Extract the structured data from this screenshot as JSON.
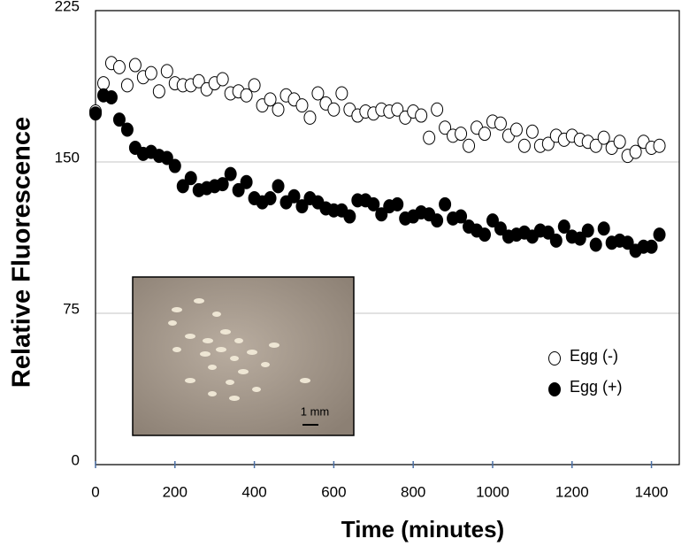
{
  "chart_data": {
    "type": "scatter",
    "y_label": "Relative Fluorescence",
    "x_label": "Time (minutes)",
    "inset_scale_label": "1 mm",
    "xlim": [
      0,
      1470
    ],
    "ylim": [
      0,
      225
    ],
    "xticks": [
      0,
      200,
      400,
      600,
      800,
      1000,
      1200,
      1400
    ],
    "yticks": [
      0,
      75,
      150,
      225
    ],
    "grid": true,
    "legend": "right",
    "x": [
      0,
      20,
      40,
      60,
      80,
      100,
      120,
      140,
      160,
      180,
      200,
      220,
      240,
      260,
      280,
      300,
      320,
      340,
      360,
      380,
      400,
      420,
      440,
      460,
      480,
      500,
      520,
      540,
      560,
      580,
      600,
      620,
      640,
      660,
      680,
      700,
      720,
      740,
      760,
      780,
      800,
      820,
      840,
      860,
      880,
      900,
      920,
      940,
      960,
      980,
      1000,
      1020,
      1040,
      1060,
      1080,
      1100,
      1120,
      1140,
      1160,
      1180,
      1200,
      1220,
      1240,
      1260,
      1280,
      1300,
      1320,
      1340,
      1360,
      1380,
      1400,
      1420
    ],
    "series": [
      {
        "name": "Egg (-)",
        "color": "#ffffff",
        "stroke": "#000000",
        "values": [
          175,
          189,
          199,
          197,
          188,
          198,
          192,
          194,
          185,
          195,
          189,
          188,
          188,
          190,
          186,
          189,
          191,
          184,
          185,
          183,
          188,
          178,
          181,
          176,
          183,
          181,
          178,
          172,
          184,
          179,
          176,
          184,
          176,
          173,
          175,
          174,
          176,
          175,
          176,
          172,
          175,
          173,
          162,
          176,
          167,
          163,
          164,
          158,
          167,
          164,
          170,
          169,
          163,
          166,
          158,
          165,
          158,
          159,
          163,
          161,
          163,
          161,
          160,
          158,
          162,
          157,
          160,
          153,
          155,
          160,
          157,
          158
        ]
      },
      {
        "name": "Egg (+)",
        "color": "#000000",
        "stroke": "#000000",
        "values": [
          174,
          183,
          182,
          171,
          166,
          157,
          154,
          155,
          153,
          152,
          148,
          138,
          142,
          136,
          137,
          138,
          139,
          144,
          136,
          140,
          132,
          130,
          132,
          138,
          130,
          133,
          128,
          132,
          130,
          127,
          126,
          126,
          123,
          131,
          131,
          129,
          124,
          128,
          129,
          122,
          123,
          125,
          124,
          121,
          129,
          122,
          123,
          118,
          116,
          114,
          121,
          117,
          113,
          114,
          115,
          113,
          116,
          115,
          111,
          118,
          113,
          112,
          116,
          109,
          117,
          110,
          111,
          110,
          106,
          108,
          108,
          114
        ]
      }
    ]
  }
}
